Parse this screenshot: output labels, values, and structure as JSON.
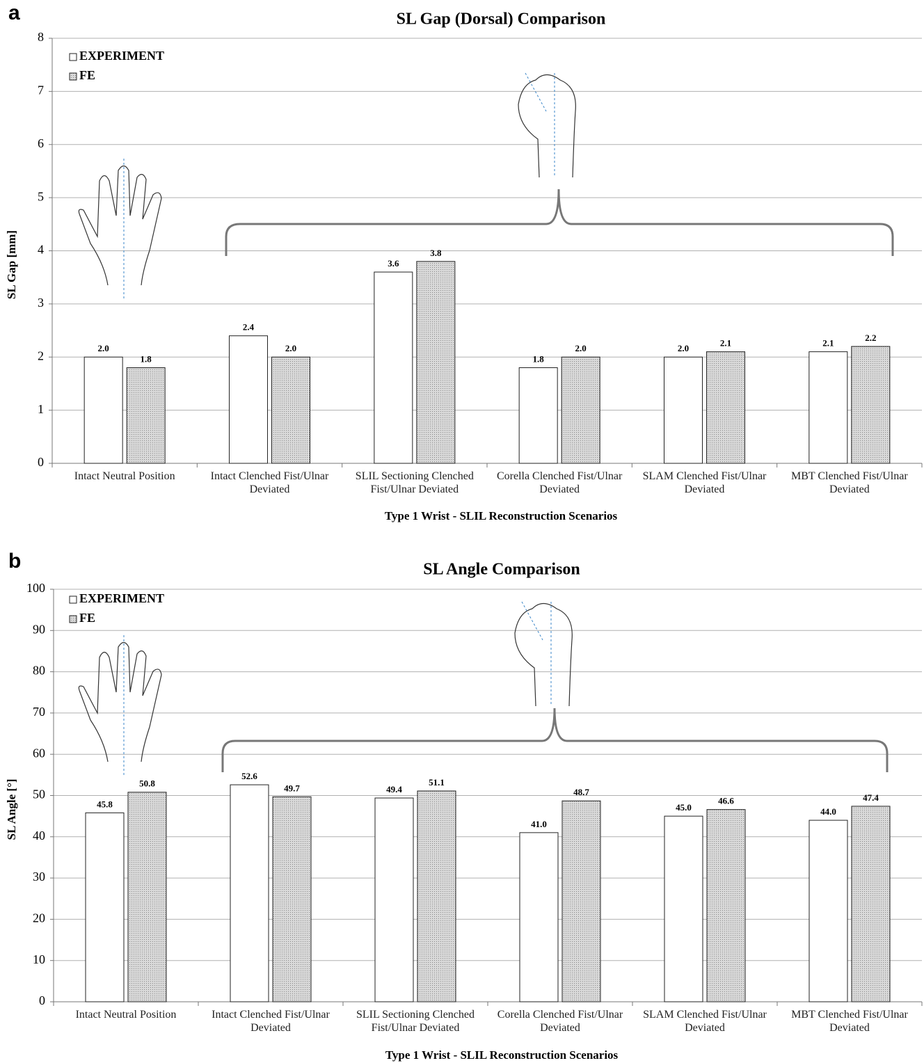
{
  "chart_data": [
    {
      "type": "bar",
      "panel": "a",
      "title": "SL Gap (Dorsal) Comparison",
      "y_label": "SL Gap [mm]",
      "x_label": "Type 1 Wrist - SLIL Reconstruction Scenarios",
      "categories": [
        "Intact Neutral Position",
        "Intact Clenched Fist/Ulnar Deviated",
        "SLIL Sectioning Clenched Fist/Ulnar Deviated",
        "Corella Clenched Fist/Ulnar Deviated",
        "SLAM Clenched Fist/Ulnar Deviated",
        "MBT Clenched Fist/Ulnar Deviated"
      ],
      "series": [
        {
          "name": "EXPERIMENT",
          "color": "#ffffff",
          "values": [
            2.0,
            2.4,
            3.6,
            1.8,
            2.0,
            2.1
          ],
          "value_labels": [
            "2.0",
            "2.4",
            "3.6",
            "1.8",
            "2.0",
            "2.1"
          ]
        },
        {
          "name": "FE",
          "color": "#c8c8c8",
          "values": [
            1.8,
            2.0,
            3.8,
            2.0,
            2.1,
            2.2
          ],
          "value_labels": [
            "1.8",
            "2.0",
            "3.8",
            "2.0",
            "2.1",
            "2.2"
          ]
        }
      ],
      "ylim": [
        0,
        8
      ],
      "yticks": [
        0,
        1,
        2,
        3,
        4,
        5,
        6,
        7,
        8
      ],
      "grid": true,
      "legend": "top-left"
    },
    {
      "type": "bar",
      "panel": "b",
      "title": "SL Angle Comparison",
      "y_label": "SL Angle [°]",
      "x_label": "Type 1 Wrist - SLIL Reconstruction Scenarios",
      "categories": [
        "Intact Neutral Position",
        "Intact Clenched Fist/Ulnar Deviated",
        "SLIL Sectioning Clenched Fist/Ulnar Deviated",
        "Corella Clenched Fist/Ulnar Deviated",
        "SLAM Clenched Fist/Ulnar Deviated",
        "MBT Clenched Fist/Ulnar Deviated"
      ],
      "series": [
        {
          "name": "EXPERIMENT",
          "color": "#ffffff",
          "values": [
            45.8,
            52.6,
            49.4,
            41.0,
            45.0,
            44.0
          ],
          "value_labels": [
            "45.8",
            "52.6",
            "49.4",
            "41.0",
            "45.0",
            "44.0"
          ]
        },
        {
          "name": "FE",
          "color": "#c8c8c8",
          "values": [
            50.8,
            49.7,
            51.1,
            48.7,
            46.6,
            47.4
          ],
          "value_labels": [
            "50.8",
            "49.7",
            "51.1",
            "48.7",
            "46.6",
            "47.4"
          ]
        }
      ],
      "ylim": [
        0,
        100
      ],
      "yticks": [
        0,
        10,
        20,
        30,
        40,
        50,
        60,
        70,
        80,
        90,
        100
      ],
      "grid": true,
      "legend": "top-left"
    }
  ]
}
